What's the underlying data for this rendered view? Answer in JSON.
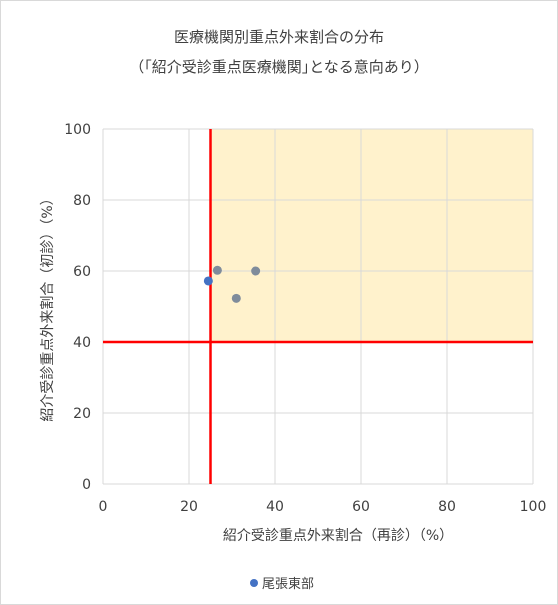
{
  "chart_data": {
    "type": "scatter",
    "title": "医療機関別重点外来割合の分布",
    "subtitle": "（｢紹介受診重点医療機関｣となる意向あり）",
    "xlabel": "紹介受診重点外来割合（再診）（%）",
    "ylabel": "紹介受診重点外来割合（初診）（%）",
    "xlim": [
      0,
      100
    ],
    "ylim": [
      0,
      100
    ],
    "xticks": [
      "0",
      "20",
      "40",
      "60",
      "80",
      "100"
    ],
    "yticks": [
      "0",
      "20",
      "40",
      "60",
      "80",
      "100"
    ],
    "grid": true,
    "threshold_x": 25,
    "threshold_y": 40,
    "highlight_color": "#fff2cc",
    "threshold_color": "#ff0000",
    "series": [
      {
        "name": "尾張東部",
        "color": "#4472c4",
        "points": [
          [
            24.5,
            57.2
          ]
        ]
      },
      {
        "color": "#7f8c9b",
        "points": [
          [
            26.6,
            60.2
          ],
          [
            31.0,
            52.3
          ],
          [
            35.5,
            60.0
          ]
        ]
      }
    ],
    "legend_position": "bottom"
  }
}
